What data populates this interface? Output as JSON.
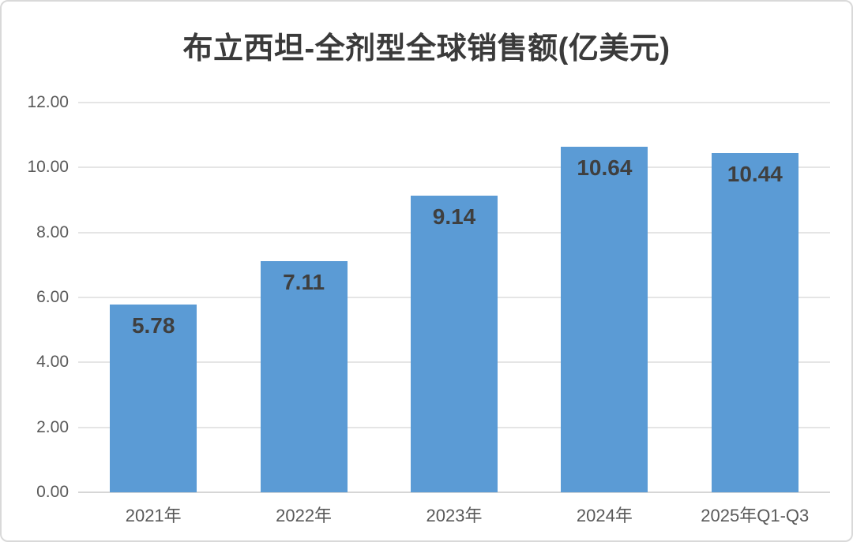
{
  "chart_data": {
    "type": "bar",
    "title": "布立西坦-全剂型全球销售额(亿美元)",
    "categories": [
      "2021年",
      "2022年",
      "2023年",
      "2024年",
      "2025年Q1-Q3"
    ],
    "values": [
      5.78,
      7.11,
      9.14,
      10.64,
      10.44
    ],
    "value_labels": [
      "5.78",
      "7.11",
      "9.14",
      "10.64",
      "10.44"
    ],
    "ylim": [
      0,
      12
    ],
    "yticks": [
      0,
      2,
      4,
      6,
      8,
      10,
      12
    ],
    "ytick_labels": [
      "0.00",
      "2.00",
      "4.00",
      "6.00",
      "8.00",
      "10.00",
      "12.00"
    ],
    "grid": true,
    "legend": "none",
    "xlabel": "",
    "ylabel": "",
    "colors": {
      "bar": "#5B9BD5",
      "value_label": "#3f3f3f",
      "axis_text": "#595959",
      "title": "#3a3a3a",
      "gridline": "#e5e5e5",
      "baseline": "#d6d6d6",
      "frame_border": "#d9d9d9"
    }
  }
}
